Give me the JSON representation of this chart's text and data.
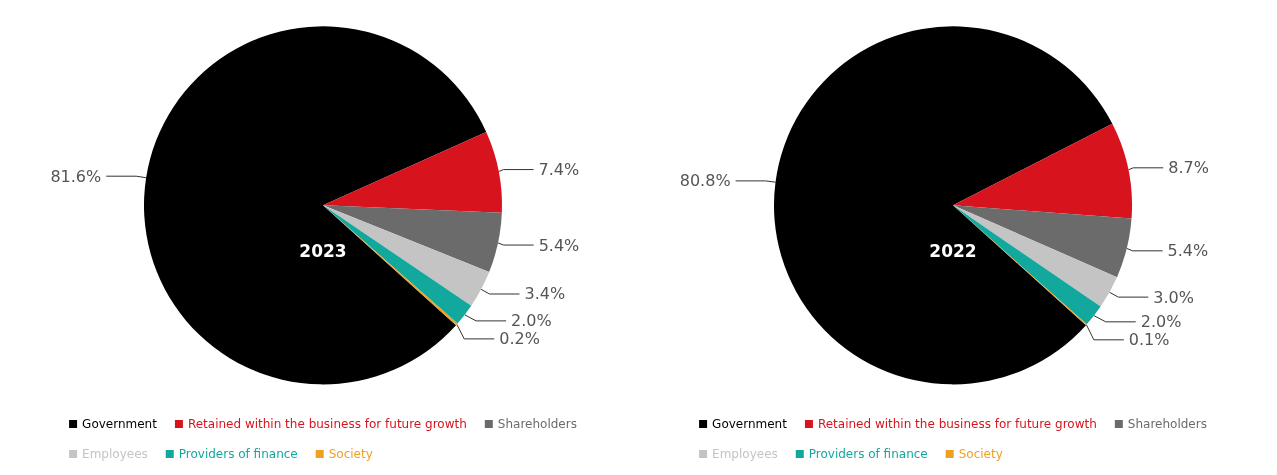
{
  "chart_data": [
    {
      "type": "pie",
      "title": "2023",
      "categories": [
        "Government",
        "Retained within the business for future growth",
        "Shareholders",
        "Employees",
        "Providers of finance",
        "Society"
      ],
      "values": [
        81.6,
        7.4,
        5.4,
        3.4,
        2.0,
        0.2
      ],
      "value_labels": [
        "81.6%",
        "7.4%",
        "5.4%",
        "3.4%",
        "2.0%",
        "0.2%"
      ],
      "colors": [
        "#000000",
        "#d7141e",
        "#6b6b6b",
        "#c4c4c4",
        "#12a89e",
        "#f0a020"
      ],
      "legend": "bottom"
    },
    {
      "type": "pie",
      "title": "2022",
      "categories": [
        "Government",
        "Retained within the business for future growth",
        "Shareholders",
        "Employees",
        "Providers of finance",
        "Society"
      ],
      "values": [
        80.8,
        8.7,
        5.4,
        3.0,
        2.0,
        0.1
      ],
      "value_labels": [
        "80.8%",
        "8.7%",
        "5.4%",
        "3.0%",
        "2.0%",
        "0.1%"
      ],
      "colors": [
        "#000000",
        "#d7141e",
        "#6b6b6b",
        "#c4c4c4",
        "#12a89e",
        "#f0a020"
      ],
      "legend": "bottom"
    }
  ]
}
